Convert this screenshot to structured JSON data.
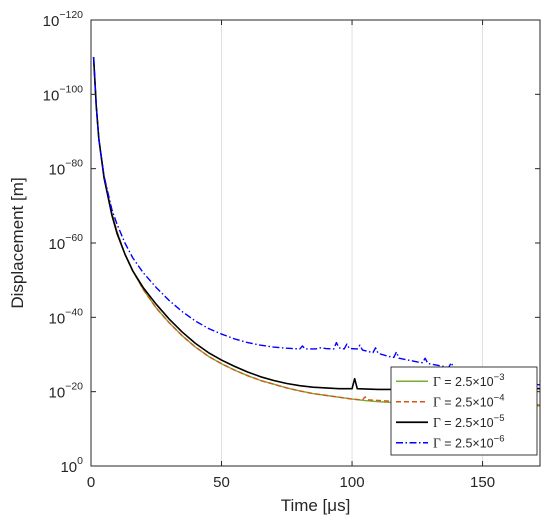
{
  "chart_data": {
    "type": "line",
    "xlabel": "Time [μs]",
    "ylabel": "Displacement [m]",
    "xlim": [
      0,
      172
    ],
    "ylog": true,
    "ylim_exponent": [
      -120,
      0
    ],
    "grid": true,
    "legend_position": "bottom-right",
    "x_ticks": [
      0,
      50,
      100,
      150
    ],
    "y_ticks_exponent": [
      0,
      -20,
      -40,
      -60,
      -80,
      -100,
      -120
    ],
    "y_tick_base": "10",
    "series": [
      {
        "name": "Γ = 2.5×10⁻³",
        "legend_prefix": "Γ",
        "legend_mid": "= 2.5×10",
        "legend_exp": "−3",
        "color": "#77ac30",
        "dash": "solid",
        "points": [
          [
            1,
            -110
          ],
          [
            2,
            -97
          ],
          [
            3,
            -88
          ],
          [
            5,
            -78
          ],
          [
            8,
            -68
          ],
          [
            10,
            -63
          ],
          [
            13,
            -57
          ],
          [
            16,
            -52.5
          ],
          [
            20,
            -47.5
          ],
          [
            25,
            -42.5
          ],
          [
            30,
            -38.5
          ],
          [
            35,
            -35
          ],
          [
            40,
            -32
          ],
          [
            45,
            -29.5
          ],
          [
            50,
            -27.5
          ],
          [
            55,
            -25.8
          ],
          [
            60,
            -24.3
          ],
          [
            65,
            -23
          ],
          [
            70,
            -22
          ],
          [
            75,
            -21
          ],
          [
            80,
            -20.2
          ],
          [
            85,
            -19.5
          ],
          [
            90,
            -19
          ],
          [
            95,
            -18.5
          ],
          [
            100,
            -18
          ],
          [
            105,
            -17.6
          ],
          [
            110,
            -17.3
          ],
          [
            115,
            -17.1
          ],
          [
            120,
            -17
          ],
          [
            125,
            -16.9
          ],
          [
            130,
            -16.8
          ],
          [
            140,
            -16.6
          ],
          [
            150,
            -16.4
          ],
          [
            160,
            -16.3
          ],
          [
            172,
            -16.2
          ]
        ]
      },
      {
        "name": "Γ = 2.5×10⁻⁴",
        "legend_prefix": "Γ",
        "legend_mid": "= 2.5×10",
        "legend_exp": "−4",
        "color": "#d95319",
        "dash": "dashed",
        "points": [
          [
            1,
            -110
          ],
          [
            2,
            -97
          ],
          [
            3,
            -88
          ],
          [
            5,
            -78
          ],
          [
            8,
            -68
          ],
          [
            10,
            -63
          ],
          [
            13,
            -57
          ],
          [
            16,
            -52.5
          ],
          [
            20,
            -47.5
          ],
          [
            25,
            -42.5
          ],
          [
            30,
            -38.5
          ],
          [
            35,
            -35
          ],
          [
            40,
            -32
          ],
          [
            45,
            -29.5
          ],
          [
            50,
            -27.5
          ],
          [
            55,
            -25.8
          ],
          [
            60,
            -24.3
          ],
          [
            65,
            -23
          ],
          [
            70,
            -22
          ],
          [
            75,
            -21
          ],
          [
            80,
            -20.2
          ],
          [
            85,
            -19.5
          ],
          [
            90,
            -19
          ],
          [
            95,
            -18.5
          ],
          [
            100,
            -18
          ],
          [
            104,
            -17.8
          ],
          [
            105,
            -18.6
          ],
          [
            106,
            -17.8
          ],
          [
            118,
            -17.3
          ],
          [
            119,
            -18.5
          ],
          [
            120,
            -17.3
          ],
          [
            131,
            -17
          ],
          [
            132,
            -18.2
          ],
          [
            133,
            -17
          ],
          [
            144,
            -16.8
          ],
          [
            145,
            -19
          ],
          [
            146,
            -16.8
          ],
          [
            158,
            -16.6
          ],
          [
            159,
            -17.6
          ],
          [
            160,
            -16.6
          ],
          [
            164,
            -16.5
          ],
          [
            165,
            -18.8
          ],
          [
            166,
            -16.5
          ],
          [
            172,
            -16.4
          ]
        ]
      },
      {
        "name": "Γ = 2.5×10⁻⁵",
        "legend_prefix": "Γ",
        "legend_mid": "= 2.5×10",
        "legend_exp": "−5",
        "color": "#000000",
        "dash": "solid",
        "points": [
          [
            1,
            -110
          ],
          [
            2,
            -97
          ],
          [
            3,
            -88
          ],
          [
            5,
            -77.5
          ],
          [
            8,
            -67.5
          ],
          [
            10,
            -62.5
          ],
          [
            13,
            -57
          ],
          [
            16,
            -52.5
          ],
          [
            20,
            -48
          ],
          [
            25,
            -43.5
          ],
          [
            30,
            -39.5
          ],
          [
            35,
            -36
          ],
          [
            40,
            -33
          ],
          [
            45,
            -30.5
          ],
          [
            50,
            -28.5
          ],
          [
            55,
            -26.8
          ],
          [
            60,
            -25.3
          ],
          [
            65,
            -24
          ],
          [
            70,
            -23
          ],
          [
            75,
            -22.2
          ],
          [
            80,
            -21.6
          ],
          [
            85,
            -21.2
          ],
          [
            90,
            -21
          ],
          [
            95,
            -20.8
          ],
          [
            100,
            -20.8
          ],
          [
            101,
            -23.5
          ],
          [
            102,
            -20.8
          ],
          [
            110,
            -20.6
          ],
          [
            115,
            -20.6
          ],
          [
            116,
            -23
          ],
          [
            117,
            -20.6
          ],
          [
            125,
            -20.6
          ],
          [
            130,
            -21
          ],
          [
            138,
            -21.3
          ],
          [
            139,
            -23.2
          ],
          [
            140,
            -21.3
          ],
          [
            150,
            -21.3
          ],
          [
            158,
            -21.3
          ],
          [
            159,
            -23
          ],
          [
            160,
            -21.2
          ],
          [
            166,
            -21
          ],
          [
            172,
            -20.8
          ]
        ]
      },
      {
        "name": "Γ = 2.5×10⁻⁶",
        "legend_prefix": "Γ",
        "legend_mid": "= 2.5×10",
        "legend_exp": "−6",
        "color": "#0000ff",
        "dash": "dashdot",
        "points": [
          [
            1,
            -110
          ],
          [
            2,
            -97
          ],
          [
            3,
            -88
          ],
          [
            5,
            -78
          ],
          [
            8,
            -69
          ],
          [
            10,
            -65
          ],
          [
            13,
            -60
          ],
          [
            16,
            -56
          ],
          [
            20,
            -52
          ],
          [
            25,
            -48
          ],
          [
            30,
            -44.5
          ],
          [
            35,
            -41.5
          ],
          [
            40,
            -39
          ],
          [
            45,
            -37
          ],
          [
            50,
            -35.5
          ],
          [
            55,
            -34.2
          ],
          [
            60,
            -33.2
          ],
          [
            65,
            -32.5
          ],
          [
            70,
            -32
          ],
          [
            75,
            -31.7
          ],
          [
            80,
            -31.5
          ],
          [
            81,
            -32.3
          ],
          [
            82,
            -31.5
          ],
          [
            86,
            -31.5
          ],
          [
            88,
            -31.8
          ],
          [
            90,
            -31.6
          ],
          [
            93,
            -31.5
          ],
          [
            94,
            -33.2
          ],
          [
            95,
            -31.8
          ],
          [
            97,
            -31.5
          ],
          [
            98,
            -32.8
          ],
          [
            99,
            -31.6
          ],
          [
            102,
            -31.5
          ],
          [
            103,
            -32.5
          ],
          [
            104,
            -31.2
          ],
          [
            108,
            -30.5
          ],
          [
            109,
            -31.8
          ],
          [
            110,
            -30.3
          ],
          [
            114,
            -29.5
          ],
          [
            116,
            -29.2
          ],
          [
            117,
            -30.7
          ],
          [
            118,
            -29
          ],
          [
            125,
            -28
          ],
          [
            127,
            -27.8
          ],
          [
            128,
            -29
          ],
          [
            129,
            -27.6
          ],
          [
            135,
            -26.8
          ],
          [
            137,
            -26.5
          ],
          [
            138,
            -27.8
          ],
          [
            139,
            -26.3
          ],
          [
            145,
            -25.5
          ],
          [
            147,
            -25.2
          ],
          [
            148,
            -26.5
          ],
          [
            149,
            -25
          ],
          [
            155,
            -24.2
          ],
          [
            157,
            -23.8
          ],
          [
            158,
            -25
          ],
          [
            159,
            -23.6
          ],
          [
            164,
            -22.8
          ],
          [
            168,
            -22.2
          ],
          [
            172,
            -21.8
          ],
          [
            172,
            -23
          ]
        ]
      }
    ]
  }
}
